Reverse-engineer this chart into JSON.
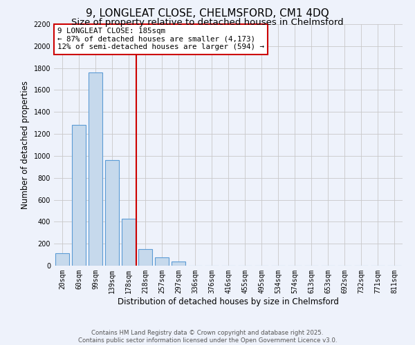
{
  "title": "9, LONGLEAT CLOSE, CHELMSFORD, CM1 4DQ",
  "subtitle": "Size of property relative to detached houses in Chelmsford",
  "xlabel": "Distribution of detached houses by size in Chelmsford",
  "ylabel": "Number of detached properties",
  "bar_values": [
    115,
    1280,
    1760,
    960,
    430,
    150,
    75,
    35,
    0,
    0,
    0,
    0,
    0,
    0,
    0,
    0,
    0,
    0,
    0,
    0,
    0
  ],
  "bar_labels": [
    "20sqm",
    "60sqm",
    "99sqm",
    "139sqm",
    "178sqm",
    "218sqm",
    "257sqm",
    "297sqm",
    "336sqm",
    "376sqm",
    "416sqm",
    "455sqm",
    "495sqm",
    "534sqm",
    "574sqm",
    "613sqm",
    "653sqm",
    "692sqm",
    "732sqm",
    "771sqm",
    "811sqm"
  ],
  "ylim": [
    0,
    2200
  ],
  "yticks": [
    0,
    200,
    400,
    600,
    800,
    1000,
    1200,
    1400,
    1600,
    1800,
    2000,
    2200
  ],
  "bar_color": "#c6d9ec",
  "bar_edge_color": "#5b9bd5",
  "vline_color": "#cc0000",
  "vline_x": 4.45,
  "annotation_box_text": "9 LONGLEAT CLOSE: 185sqm\n← 87% of detached houses are smaller (4,173)\n12% of semi-detached houses are larger (594) →",
  "annotation_box_color": "#cc0000",
  "footnote1": "Contains HM Land Registry data © Crown copyright and database right 2025.",
  "footnote2": "Contains public sector information licensed under the Open Government Licence v3.0.",
  "background_color": "#eef2fb",
  "grid_color": "#c8c8c8",
  "title_fontsize": 11,
  "subtitle_fontsize": 9.5,
  "axis_label_fontsize": 8.5,
  "tick_fontsize": 7,
  "annotation_fontsize": 7.8,
  "footnote_fontsize": 6.2
}
